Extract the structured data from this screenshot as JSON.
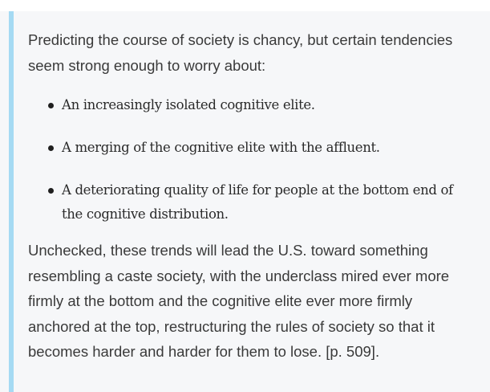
{
  "blockquote": {
    "intro": "Predicting the course of society is chancy, but certain tendencies seem strong enough to worry about:",
    "items": [
      "An increasingly isolated cognitive elite.",
      "A merging of the cognitive elite with the affluent.",
      "A deteriorating quality of life for people at the bottom end of the cognitive distribution."
    ],
    "conclusion": "Unchecked, these trends will lead the U.S. toward something resembling a caste society, with the underclass mired ever more firmly at the bottom and the cognitive elite ever more firmly anchored at the top, restructuring the rules of society so that it becomes harder and harder for them to lose. [p. 509]."
  },
  "colors": {
    "accent_bar": "#a5daf3",
    "background": "#f6f7f9"
  }
}
